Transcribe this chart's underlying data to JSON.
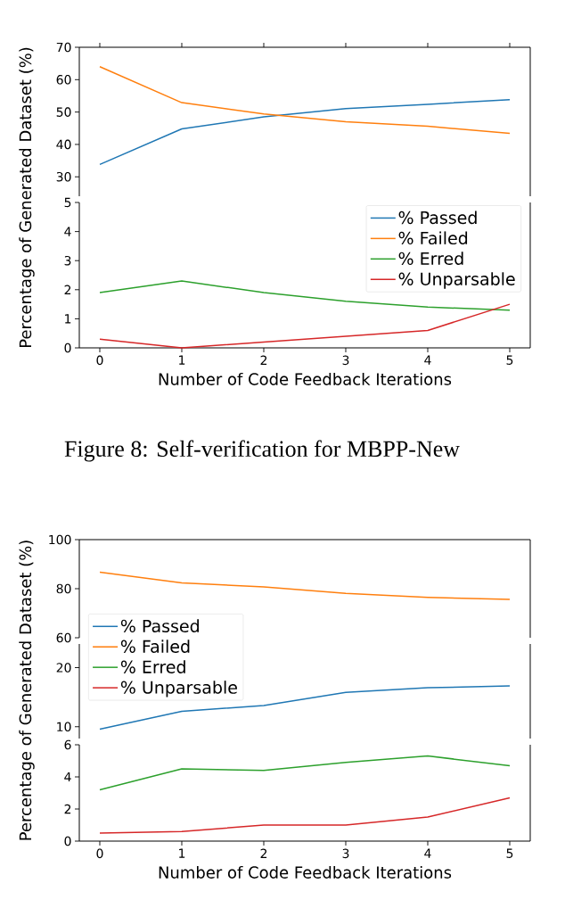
{
  "chart_data": [
    {
      "type": "line",
      "ylabel": "Percentage of Generated Dataset (%)",
      "x": [
        0,
        1,
        2,
        3,
        4,
        5
      ],
      "xlim": [
        -0.25,
        5.25
      ],
      "xticks": [
        0,
        1,
        2,
        3,
        4,
        5
      ],
      "ylim": [
        24,
        70
      ],
      "yticks": [
        30,
        40,
        50,
        60,
        70
      ],
      "tick_labels": "y",
      "series": [
        {
          "color": "#1f77b4",
          "values": [
            33.8,
            44.8,
            48.5,
            51.1,
            52.4,
            53.8
          ]
        },
        {
          "color": "#ff7f0e",
          "values": [
            64,
            52.9,
            49.4,
            47,
            45.6,
            43.4
          ]
        }
      ]
    },
    {
      "type": "line",
      "xlabel": "Number of Code Feedback Iterations",
      "x": [
        0,
        1,
        2,
        3,
        4,
        5
      ],
      "xlim": [
        -0.25,
        5.25
      ],
      "xticks": [
        0,
        1,
        2,
        3,
        4,
        5
      ],
      "ylim": [
        0,
        5
      ],
      "yticks": [
        0,
        1,
        2,
        3,
        4,
        5
      ],
      "legend": "top right",
      "annotations": [
        "Figure 8:  Self-verification for MBPP-New"
      ],
      "series": [
        {
          "name": "% Passed",
          "color": "#1f77b4",
          "values": [
            null,
            null,
            null,
            null,
            null,
            null
          ]
        },
        {
          "name": "% Failed",
          "color": "#ff7f0e",
          "values": [
            null,
            null,
            null,
            null,
            null,
            null
          ]
        },
        {
          "name": "% Erred",
          "color": "#2ca02c",
          "values": [
            1.9,
            2.3,
            1.9,
            1.6,
            1.4,
            1.3
          ]
        },
        {
          "name": "% Unparsable",
          "color": "#d62728",
          "values": [
            0.3,
            0,
            0.2,
            0.4,
            0.6,
            1.5
          ]
        }
      ]
    },
    {
      "type": "line",
      "ylabel": "Percentage of Generated Dataset (%)",
      "x": [
        0,
        1,
        2,
        3,
        4,
        5
      ],
      "xlim": [
        -0.25,
        5.25
      ],
      "ylim": [
        60,
        100
      ],
      "yticks": [
        60,
        80,
        100
      ],
      "tick_labels": "y",
      "series": [
        {
          "color": "#ff7f0e",
          "values": [
            86.7,
            82.4,
            80.7,
            78.1,
            76.5,
            75.6
          ]
        }
      ]
    },
    {
      "type": "line",
      "x": [
        0,
        1,
        2,
        3,
        4,
        5
      ],
      "xlim": [
        -0.25,
        5.25
      ],
      "ylim": [
        8,
        24
      ],
      "yticks": [
        10,
        20
      ],
      "tick_labels": "y",
      "legend": "top left",
      "series": [
        {
          "name": "% Passed",
          "color": "#1f77b4",
          "values": [
            9.6,
            12.6,
            13.6,
            15.8,
            16.6,
            16.9
          ]
        },
        {
          "name": "% Failed",
          "color": "#ff7f0e",
          "values": [
            null,
            null,
            null,
            null,
            null,
            null
          ]
        },
        {
          "name": "% Erred",
          "color": "#2ca02c",
          "values": [
            null,
            null,
            null,
            null,
            null,
            null
          ]
        },
        {
          "name": "% Unparsable",
          "color": "#d62728",
          "values": [
            null,
            null,
            null,
            null,
            null,
            null
          ]
        }
      ]
    },
    {
      "type": "line",
      "xlabel": "Number of Code Feedback Iterations",
      "x": [
        0,
        1,
        2,
        3,
        4,
        5
      ],
      "xlim": [
        -0.25,
        5.25
      ],
      "xticks": [
        0,
        1,
        2,
        3,
        4,
        5
      ],
      "ylim": [
        0,
        6
      ],
      "yticks": [
        0,
        2,
        4,
        6
      ],
      "series": [
        {
          "color": "#2ca02c",
          "values": [
            3.2,
            4.5,
            4.4,
            4.9,
            5.3,
            4.7
          ]
        },
        {
          "color": "#d62728",
          "values": [
            0.5,
            0.6,
            1.0,
            1.0,
            1.5,
            2.7
          ]
        }
      ]
    }
  ]
}
